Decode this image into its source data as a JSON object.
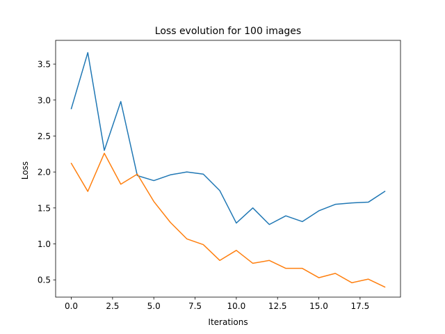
{
  "chart_data": {
    "type": "line",
    "title": "Loss evolution for 100 images",
    "xlabel": "Iterations",
    "ylabel": "Loss",
    "xlim": [
      -0.95,
      19.95
    ],
    "ylim": [
      0.26,
      3.83
    ],
    "xticks": [
      0.0,
      2.5,
      5.0,
      7.5,
      10.0,
      12.5,
      15.0,
      17.5
    ],
    "xtick_labels": [
      "0.0",
      "2.5",
      "5.0",
      "7.5",
      "10.0",
      "12.5",
      "15.0",
      "17.5"
    ],
    "yticks": [
      0.5,
      1.0,
      1.5,
      2.0,
      2.5,
      3.0,
      3.5
    ],
    "ytick_labels": [
      "0.5",
      "1.0",
      "1.5",
      "2.0",
      "2.5",
      "3.0",
      "3.5"
    ],
    "grid": false,
    "x": [
      0,
      1,
      2,
      3,
      4,
      5,
      6,
      7,
      8,
      9,
      10,
      11,
      12,
      13,
      14,
      15,
      16,
      17,
      18,
      19
    ],
    "series": [
      {
        "color": "#1f77b4",
        "values": [
          2.88,
          3.66,
          2.3,
          2.98,
          1.95,
          1.88,
          1.96,
          2.0,
          1.97,
          1.74,
          1.29,
          1.5,
          1.27,
          1.39,
          1.31,
          1.46,
          1.55,
          1.57,
          1.58,
          1.73
        ]
      },
      {
        "color": "#ff7f0e",
        "values": [
          2.12,
          1.73,
          2.26,
          1.83,
          1.97,
          1.59,
          1.3,
          1.07,
          0.99,
          0.77,
          0.91,
          0.73,
          0.77,
          0.66,
          0.66,
          0.53,
          0.59,
          0.46,
          0.51,
          0.4
        ]
      }
    ]
  }
}
